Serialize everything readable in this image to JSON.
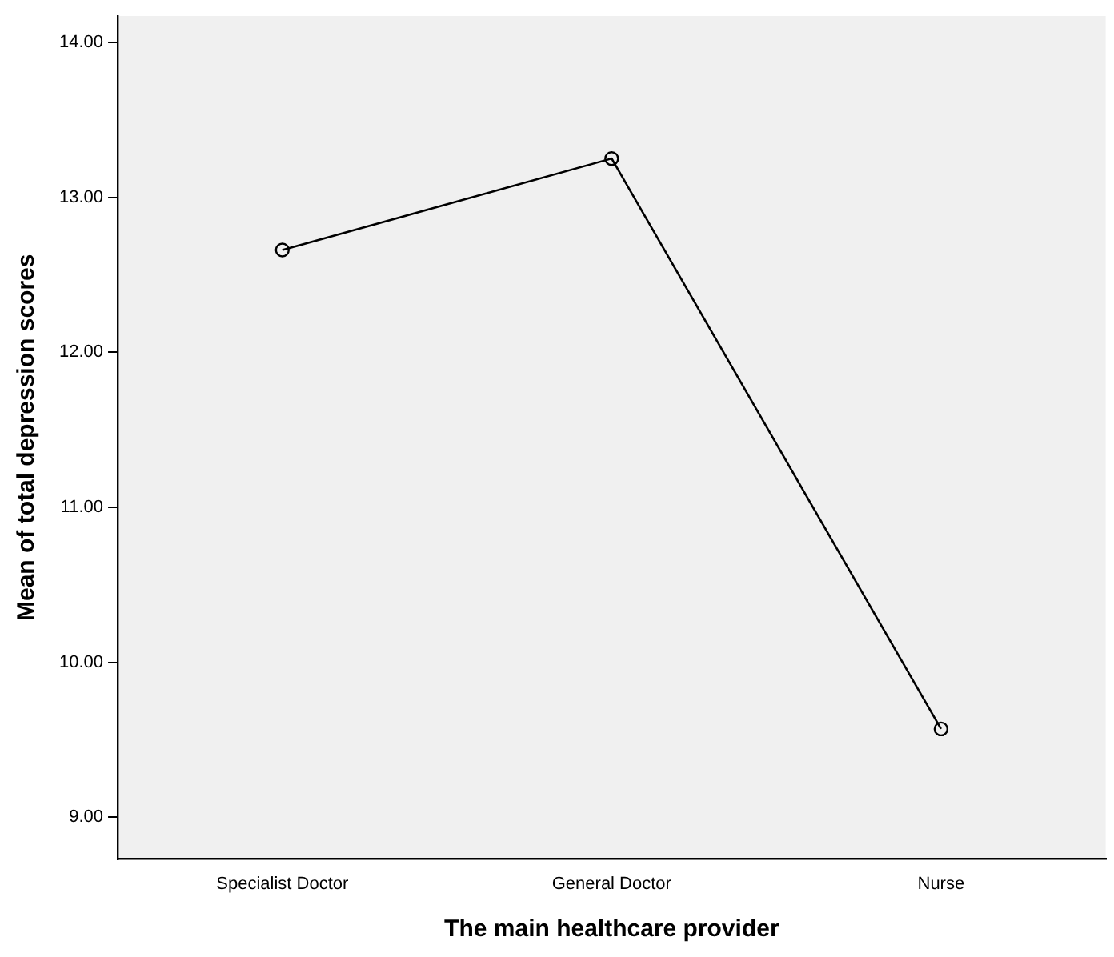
{
  "chart_data": {
    "type": "line",
    "xlabel": "The main healthcare provider",
    "ylabel": "Mean of total depression scores",
    "categories": [
      "Specialist Doctor",
      "General Doctor",
      "Nurse"
    ],
    "values": [
      12.66,
      13.25,
      9.57
    ],
    "color": "#000000",
    "ylim": [
      8.73,
      14.17
    ],
    "yticks": [
      {
        "value": 9,
        "label": "9.00"
      },
      {
        "value": 10,
        "label": "10.00"
      },
      {
        "value": 11,
        "label": "11.00"
      },
      {
        "value": 12,
        "label": "12.00"
      },
      {
        "value": 13,
        "label": "13.00"
      },
      {
        "value": 14,
        "label": "14.00"
      }
    ],
    "grid": false,
    "legend": false,
    "marker": "circle",
    "line_style": "solid"
  }
}
